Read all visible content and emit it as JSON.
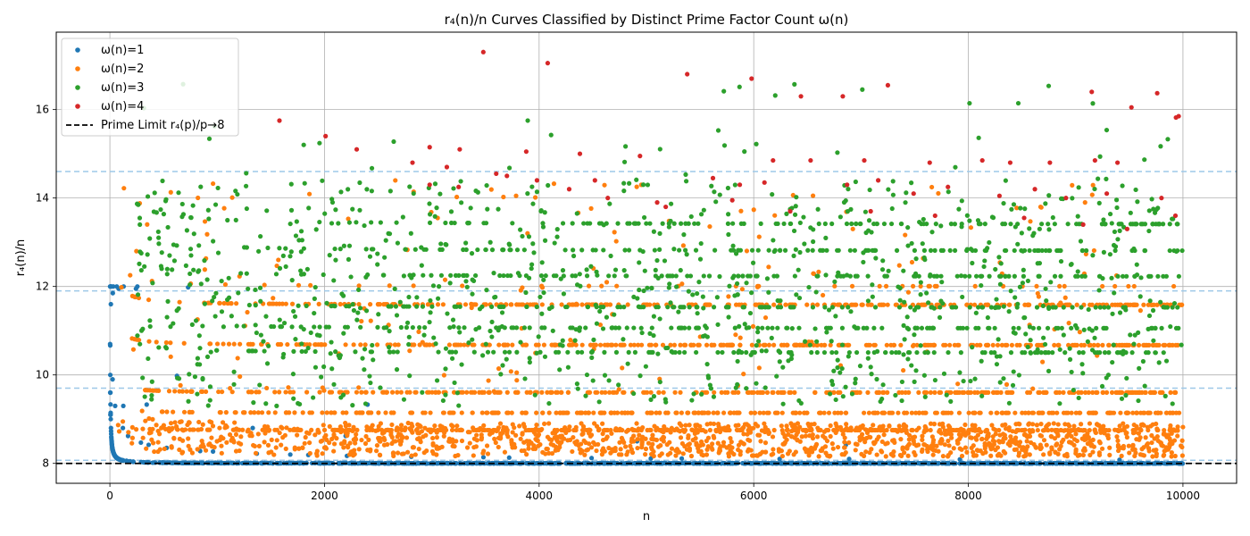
{
  "chart_data": {
    "type": "scatter",
    "title": "r₄(n)/n Curves Classified by Distinct Prime Factor Count ω(n)",
    "xlabel": "n",
    "ylabel": "r₄(n)/n",
    "xlim": [
      -500,
      10500
    ],
    "ylim": [
      7.55,
      17.75
    ],
    "x_ticks": [
      0,
      2000,
      4000,
      6000,
      8000,
      10000
    ],
    "y_ticks": [
      8,
      10,
      12,
      14,
      16
    ],
    "grid": true,
    "legend_position": "top-left",
    "series": [
      {
        "name": "ω(n)=1",
        "color": "#1f77b4",
        "description_points": [
          [
            2,
            10.7
          ],
          [
            3,
            9.6
          ],
          [
            4,
            12.0
          ],
          [
            5,
            9.1
          ],
          [
            7,
            9.1
          ],
          [
            8,
            12.0
          ],
          [
            9,
            11.6
          ],
          [
            11,
            8.73
          ],
          [
            13,
            8.6
          ],
          [
            16,
            12.0
          ],
          [
            17,
            8.5
          ],
          [
            19,
            8.42
          ],
          [
            23,
            8.35
          ],
          [
            25,
            9.9
          ],
          [
            27,
            11.85
          ],
          [
            29,
            8.28
          ],
          [
            31,
            8.26
          ],
          [
            32,
            12.0
          ],
          [
            37,
            8.22
          ],
          [
            41,
            8.2
          ],
          [
            43,
            8.19
          ],
          [
            47,
            8.17
          ],
          [
            49,
            9.3
          ],
          [
            53,
            8.15
          ],
          [
            59,
            8.14
          ],
          [
            61,
            8.13
          ],
          [
            64,
            12.0
          ],
          [
            67,
            8.12
          ],
          [
            71,
            8.11
          ],
          [
            73,
            8.11
          ],
          [
            79,
            8.1
          ],
          [
            81,
            11.95
          ],
          [
            83,
            8.1
          ],
          [
            89,
            8.09
          ],
          [
            97,
            8.08
          ],
          [
            101,
            8.08
          ],
          [
            121,
            8.8
          ],
          [
            125,
            9.3
          ],
          [
            128,
            12.0
          ],
          [
            169,
            8.62
          ],
          [
            243,
            11.95
          ],
          [
            256,
            12.0
          ],
          [
            289,
            8.47
          ],
          [
            343,
            9.33
          ],
          [
            361,
            8.42
          ],
          [
            529,
            8.35
          ],
          [
            625,
            9.98
          ],
          [
            729,
            11.98
          ],
          [
            841,
            8.28
          ],
          [
            961,
            8.27
          ],
          [
            1331,
            8.8
          ],
          [
            1369,
            8.22
          ],
          [
            1681,
            8.2
          ],
          [
            1849,
            8.19
          ],
          [
            2197,
            8.62
          ],
          [
            2209,
            8.17
          ],
          [
            2401,
            9.33
          ],
          [
            2809,
            8.15
          ],
          [
            3481,
            8.14
          ],
          [
            3721,
            8.13
          ],
          [
            4489,
            8.12
          ],
          [
            4913,
            8.5
          ],
          [
            5041,
            8.11
          ],
          [
            5329,
            8.11
          ],
          [
            6241,
            8.1
          ],
          [
            6859,
            8.42
          ],
          [
            6889,
            8.1
          ],
          [
            7921,
            8.09
          ],
          [
            9409,
            8.08
          ]
        ]
      },
      {
        "name": "ω(n)=2",
        "color": "#ff7f0e",
        "bands": [
          11.58,
          10.67,
          9.6,
          9.14,
          8.75,
          12.0
        ]
      },
      {
        "name": "ω(n)=3",
        "color": "#2ca02c",
        "bands": [
          12.8,
          12.22,
          11.52,
          11.05,
          10.5,
          13.4
        ]
      },
      {
        "name": "ω(n)=4",
        "color": "#d62728",
        "description_points": [
          [
            3480,
            17.3
          ],
          [
            4080,
            17.05
          ],
          [
            5980,
            16.7
          ],
          [
            5380,
            16.8
          ],
          [
            7250,
            16.55
          ],
          [
            6440,
            16.3
          ],
          [
            6830,
            16.3
          ],
          [
            9150,
            16.4
          ],
          [
            9760,
            16.37
          ],
          [
            9960,
            15.85
          ],
          [
            9935,
            15.82
          ],
          [
            9520,
            16.05
          ],
          [
            1580,
            15.75
          ],
          [
            2010,
            15.4
          ],
          [
            2300,
            15.1
          ],
          [
            2980,
            15.15
          ],
          [
            3260,
            15.1
          ],
          [
            3880,
            15.05
          ],
          [
            4380,
            15.0
          ],
          [
            4940,
            14.95
          ],
          [
            6180,
            14.85
          ],
          [
            6530,
            14.85
          ],
          [
            7030,
            14.85
          ],
          [
            7640,
            14.8
          ],
          [
            8130,
            14.85
          ],
          [
            8390,
            14.8
          ],
          [
            8760,
            14.8
          ],
          [
            9180,
            14.85
          ],
          [
            9390,
            14.8
          ],
          [
            2820,
            14.8
          ],
          [
            3140,
            14.7
          ],
          [
            3600,
            14.55
          ],
          [
            3700,
            14.5
          ],
          [
            3980,
            14.4
          ],
          [
            4520,
            14.4
          ],
          [
            5620,
            14.45
          ],
          [
            5870,
            14.3
          ],
          [
            6100,
            14.35
          ],
          [
            6870,
            14.3
          ],
          [
            7160,
            14.4
          ],
          [
            7490,
            14.1
          ],
          [
            7810,
            14.25
          ],
          [
            8290,
            14.05
          ],
          [
            8620,
            14.2
          ],
          [
            8910,
            14.0
          ],
          [
            9290,
            14.1
          ],
          [
            9800,
            14.0
          ],
          [
            2980,
            14.3
          ],
          [
            3250,
            14.25
          ],
          [
            4280,
            14.2
          ],
          [
            4640,
            14.0
          ],
          [
            5100,
            13.9
          ],
          [
            6340,
            13.7
          ],
          [
            7090,
            13.7
          ],
          [
            7690,
            13.6
          ],
          [
            8520,
            13.55
          ],
          [
            9070,
            13.4
          ],
          [
            9480,
            13.3
          ],
          [
            9930,
            13.6
          ],
          [
            5180,
            13.8
          ],
          [
            5800,
            13.95
          ]
        ]
      }
    ],
    "reference_line": {
      "name": "Prime Limit r₄(p)/p→8",
      "y": 8,
      "color": "#000000",
      "style": "dashed"
    },
    "horizontal_guides": [
      {
        "y": 14.6,
        "color": "#9ec8e8"
      },
      {
        "y": 11.9,
        "color": "#9ec8e8"
      },
      {
        "y": 9.7,
        "color": "#9ec8e8"
      },
      {
        "y": 8.07,
        "color": "#9ec8e8"
      }
    ]
  }
}
